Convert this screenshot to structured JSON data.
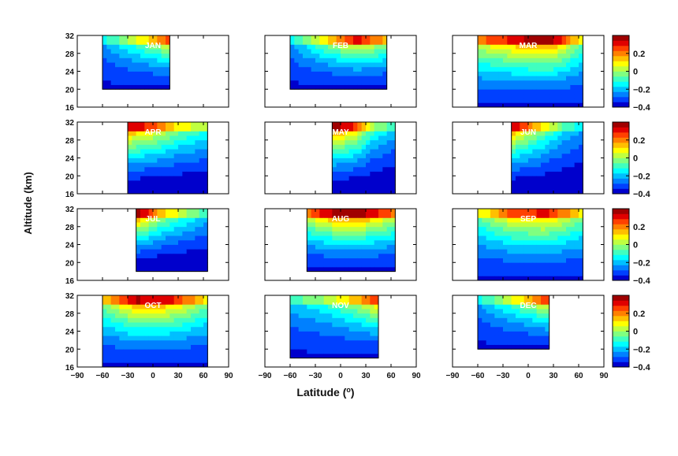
{
  "figure": {
    "ylabel": "Altitude (km)",
    "xlabel_main": "Latitude (",
    "xlabel_sup": "o",
    "xlabel_end": ")"
  },
  "chart_data": {
    "type": "heatmap",
    "description_axes": {
      "x": {
        "label": "Latitude (o)",
        "range": [
          -90,
          90
        ],
        "ticks": [
          -90,
          -60,
          -30,
          0,
          30,
          60,
          90
        ]
      },
      "y": {
        "label": "Altitude (km)",
        "range": [
          16,
          32
        ],
        "ticks": [
          16,
          20,
          24,
          28,
          32
        ]
      }
    },
    "colorbar": {
      "range": [
        -0.4,
        0.4
      ],
      "tick_labels": [
        "0.2",
        "0",
        "−0.2",
        "−0.4"
      ],
      "tick_values": [
        0.2,
        0,
        -0.2,
        -0.4
      ],
      "colors": [
        "#0000cc",
        "#0040ff",
        "#0080ff",
        "#00bfff",
        "#00ffff",
        "#40ffbf",
        "#80ff80",
        "#bfff40",
        "#ffff00",
        "#ffbf00",
        "#ff8000",
        "#ff4000",
        "#e00000",
        "#a00000"
      ]
    },
    "panels": [
      {
        "month": "JAN",
        "lat_range": [
          -60,
          20
        ],
        "profile": [
          [
            -60,
            -0.2
          ],
          [
            -30,
            -0.05
          ],
          [
            0,
            0.1
          ],
          [
            20,
            0.2
          ]
        ],
        "upper": 0.35,
        "lower": -0.35,
        "lower_alt": 20
      },
      {
        "month": "FEB",
        "lat_range": [
          -60,
          55
        ],
        "profile": [
          [
            -60,
            -0.2
          ],
          [
            -20,
            0.05
          ],
          [
            20,
            0.25
          ],
          [
            55,
            0.1
          ]
        ],
        "upper": 0.35,
        "lower": -0.35,
        "lower_alt": 20
      },
      {
        "month": "MAR",
        "lat_range": [
          -60,
          65
        ],
        "profile": [
          [
            -60,
            0.15
          ],
          [
            0,
            0.3
          ],
          [
            30,
            0.3
          ],
          [
            65,
            0.0
          ]
        ],
        "upper": 0.35,
        "lower": -0.35,
        "lower_alt": 16
      },
      {
        "month": "APR",
        "lat_range": [
          -30,
          65
        ],
        "profile": [
          [
            -30,
            0.3
          ],
          [
            0,
            0.2
          ],
          [
            30,
            0.05
          ],
          [
            65,
            -0.05
          ]
        ],
        "upper": 0.35,
        "lower": -0.4,
        "lower_alt": 16
      },
      {
        "month": "MAY",
        "lat_range": [
          -10,
          65
        ],
        "profile": [
          [
            -10,
            0.35
          ],
          [
            20,
            0.2
          ],
          [
            40,
            -0.05
          ],
          [
            65,
            -0.15
          ]
        ],
        "upper": 0.35,
        "lower": -0.4,
        "lower_alt": 16
      },
      {
        "month": "JUN",
        "lat_range": [
          -20,
          65
        ],
        "profile": [
          [
            -20,
            0.3
          ],
          [
            10,
            0.1
          ],
          [
            40,
            -0.1
          ],
          [
            65,
            -0.2
          ]
        ],
        "upper": 0.35,
        "lower": -0.4,
        "lower_alt": 16
      },
      {
        "month": "JUL",
        "lat_range": [
          -20,
          65
        ],
        "profile": [
          [
            -20,
            0.35
          ],
          [
            10,
            0.1
          ],
          [
            40,
            -0.05
          ],
          [
            65,
            -0.15
          ]
        ],
        "upper": 0.35,
        "lower": -0.4,
        "lower_alt": 18
      },
      {
        "month": "AUG",
        "lat_range": [
          -40,
          65
        ],
        "profile": [
          [
            -40,
            0.15
          ],
          [
            0,
            0.35
          ],
          [
            30,
            0.3
          ],
          [
            65,
            0.15
          ]
        ],
        "upper": 0.35,
        "lower": -0.35,
        "lower_alt": 18
      },
      {
        "month": "SEP",
        "lat_range": [
          -60,
          65
        ],
        "profile": [
          [
            -60,
            0.0
          ],
          [
            -20,
            0.2
          ],
          [
            20,
            0.25
          ],
          [
            65,
            0.05
          ]
        ],
        "upper": 0.35,
        "lower": -0.35,
        "lower_alt": 16
      },
      {
        "month": "OCT",
        "lat_range": [
          -60,
          65
        ],
        "profile": [
          [
            -60,
            0.05
          ],
          [
            -20,
            0.3
          ],
          [
            20,
            0.25
          ],
          [
            65,
            0.05
          ]
        ],
        "upper": 0.35,
        "lower": -0.35,
        "lower_alt": 16
      },
      {
        "month": "NOV",
        "lat_range": [
          -60,
          45
        ],
        "profile": [
          [
            -60,
            -0.15
          ],
          [
            -20,
            -0.05
          ],
          [
            20,
            0.1
          ],
          [
            45,
            0.25
          ]
        ],
        "upper": 0.3,
        "lower": -0.35,
        "lower_alt": 18
      },
      {
        "month": "DEC",
        "lat_range": [
          -60,
          25
        ],
        "profile": [
          [
            -60,
            -0.2
          ],
          [
            -30,
            -0.05
          ],
          [
            0,
            0.1
          ],
          [
            25,
            0.25
          ]
        ],
        "upper": 0.3,
        "lower": -0.35,
        "lower_alt": 20
      }
    ]
  }
}
